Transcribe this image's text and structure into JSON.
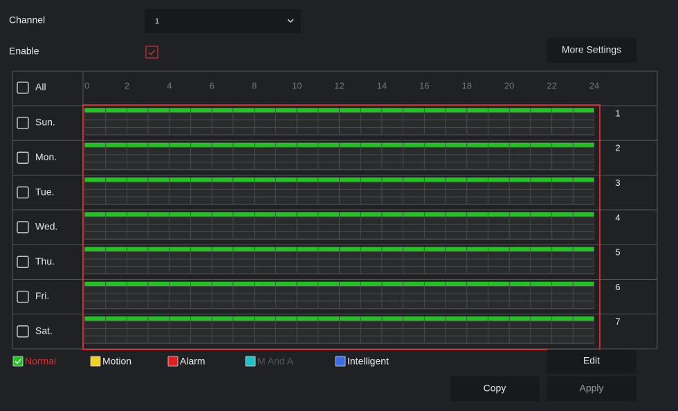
{
  "channel": {
    "label": "Channel",
    "value": "1"
  },
  "enable": {
    "label": "Enable"
  },
  "more_settings": "More Settings",
  "schedule": {
    "all": "All",
    "hours": [
      0,
      2,
      4,
      6,
      8,
      10,
      12,
      14,
      16,
      18,
      20,
      22,
      24
    ],
    "days": [
      {
        "name": "Sun.",
        "number": "1"
      },
      {
        "name": "Mon.",
        "number": "2"
      },
      {
        "name": "Tue.",
        "number": "3"
      },
      {
        "name": "Wed.",
        "number": "4"
      },
      {
        "name": "Thu.",
        "number": "5"
      },
      {
        "name": "Fri.",
        "number": "6"
      },
      {
        "name": "Sat.",
        "number": "7"
      }
    ]
  },
  "legend": [
    {
      "label": "Normal",
      "color": "#22c322"
    },
    {
      "label": "Motion",
      "color": "#f0d020"
    },
    {
      "label": "Alarm",
      "color": "#e02020"
    },
    {
      "label": "M And A",
      "color": "#20c0c8"
    },
    {
      "label": "Intelligent",
      "color": "#3a6ee8"
    }
  ],
  "buttons": {
    "edit": "Edit",
    "copy": "Copy",
    "apply": "Apply"
  }
}
